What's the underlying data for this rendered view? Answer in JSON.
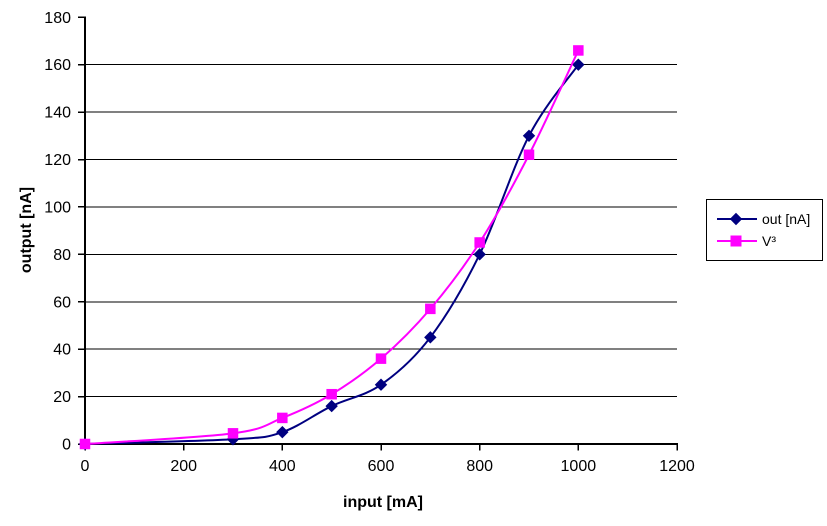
{
  "chart_data": {
    "type": "line",
    "title": "",
    "xlabel": "input [mA]",
    "ylabel": "output [nA]",
    "xlim": [
      0,
      1200
    ],
    "ylim": [
      0,
      180
    ],
    "x_ticks": [
      0,
      200,
      400,
      600,
      800,
      1000,
      1200
    ],
    "y_ticks": [
      0,
      20,
      40,
      60,
      80,
      100,
      120,
      140,
      160,
      180
    ],
    "y_gridlines": [
      20,
      40,
      60,
      80,
      100,
      120,
      140,
      160
    ],
    "grid": "horizontal-major-only",
    "smoothed": true,
    "legend_position": "right",
    "x": [
      0,
      300,
      400,
      500,
      600,
      700,
      800,
      900,
      1000
    ],
    "series": [
      {
        "name": "out [nA]",
        "marker": "diamond",
        "color": "#000080",
        "values": [
          0,
          2,
          5,
          16,
          25,
          45,
          80,
          130,
          160
        ]
      },
      {
        "name": "V³",
        "marker": "square",
        "color": "#FF00FF",
        "values": [
          0,
          4.5,
          11,
          21,
          36,
          57,
          85,
          122,
          166
        ]
      }
    ]
  },
  "colors": {
    "background": "#FFFFFF",
    "axis": "#000000",
    "gridline": "#000000",
    "text": "#000000",
    "series_out": "#000080",
    "series_v3": "#FF00FF"
  }
}
